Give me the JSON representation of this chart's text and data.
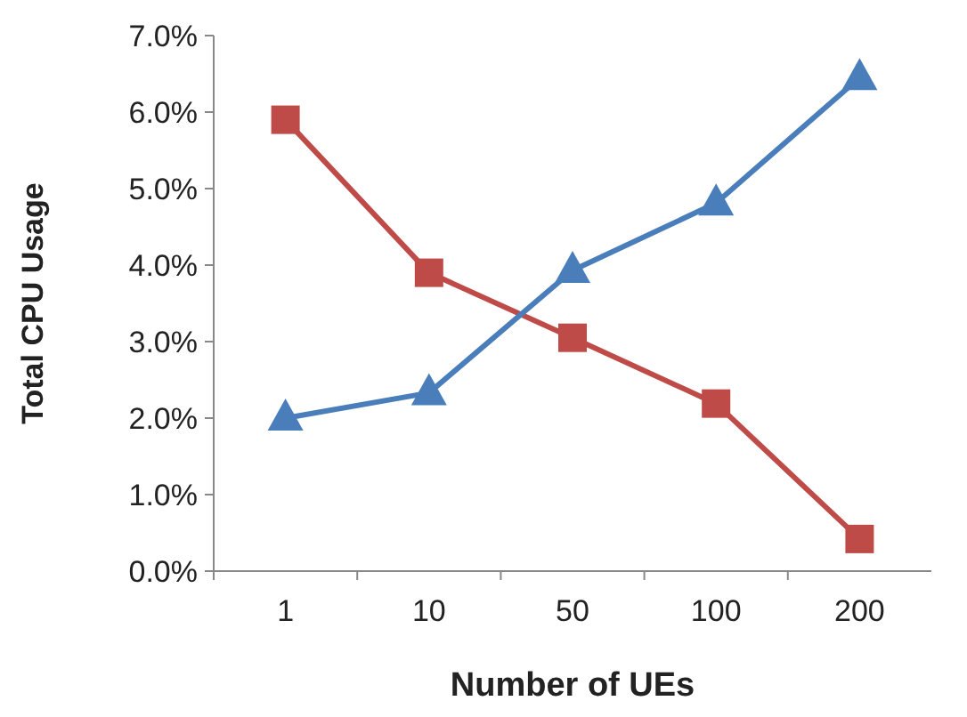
{
  "chart_data": {
    "type": "line",
    "xlabel": "Number of UEs",
    "ylabel": "Total CPU Usage",
    "categories": [
      "1",
      "10",
      "50",
      "100",
      "200"
    ],
    "series": [
      {
        "color": "#be4b48",
        "marker": "square",
        "values": [
          5.9,
          3.9,
          3.05,
          2.19,
          0.42
        ]
      },
      {
        "color": "#4a7ebb",
        "marker": "triangle",
        "values": [
          2.0,
          2.33,
          3.93,
          4.81,
          6.45
        ]
      }
    ],
    "ylim": [
      0,
      7
    ],
    "yticks": [
      {
        "value": 0,
        "label": "0.0%"
      },
      {
        "value": 1,
        "label": "1.0%"
      },
      {
        "value": 2,
        "label": "2.0%"
      },
      {
        "value": 3,
        "label": "3.0%"
      },
      {
        "value": 4,
        "label": "4.0%"
      },
      {
        "value": 5,
        "label": "5.0%"
      },
      {
        "value": 6,
        "label": "6.0%"
      },
      {
        "value": 7,
        "label": "7.0%"
      }
    ],
    "grid": false,
    "line_style": "solid"
  }
}
